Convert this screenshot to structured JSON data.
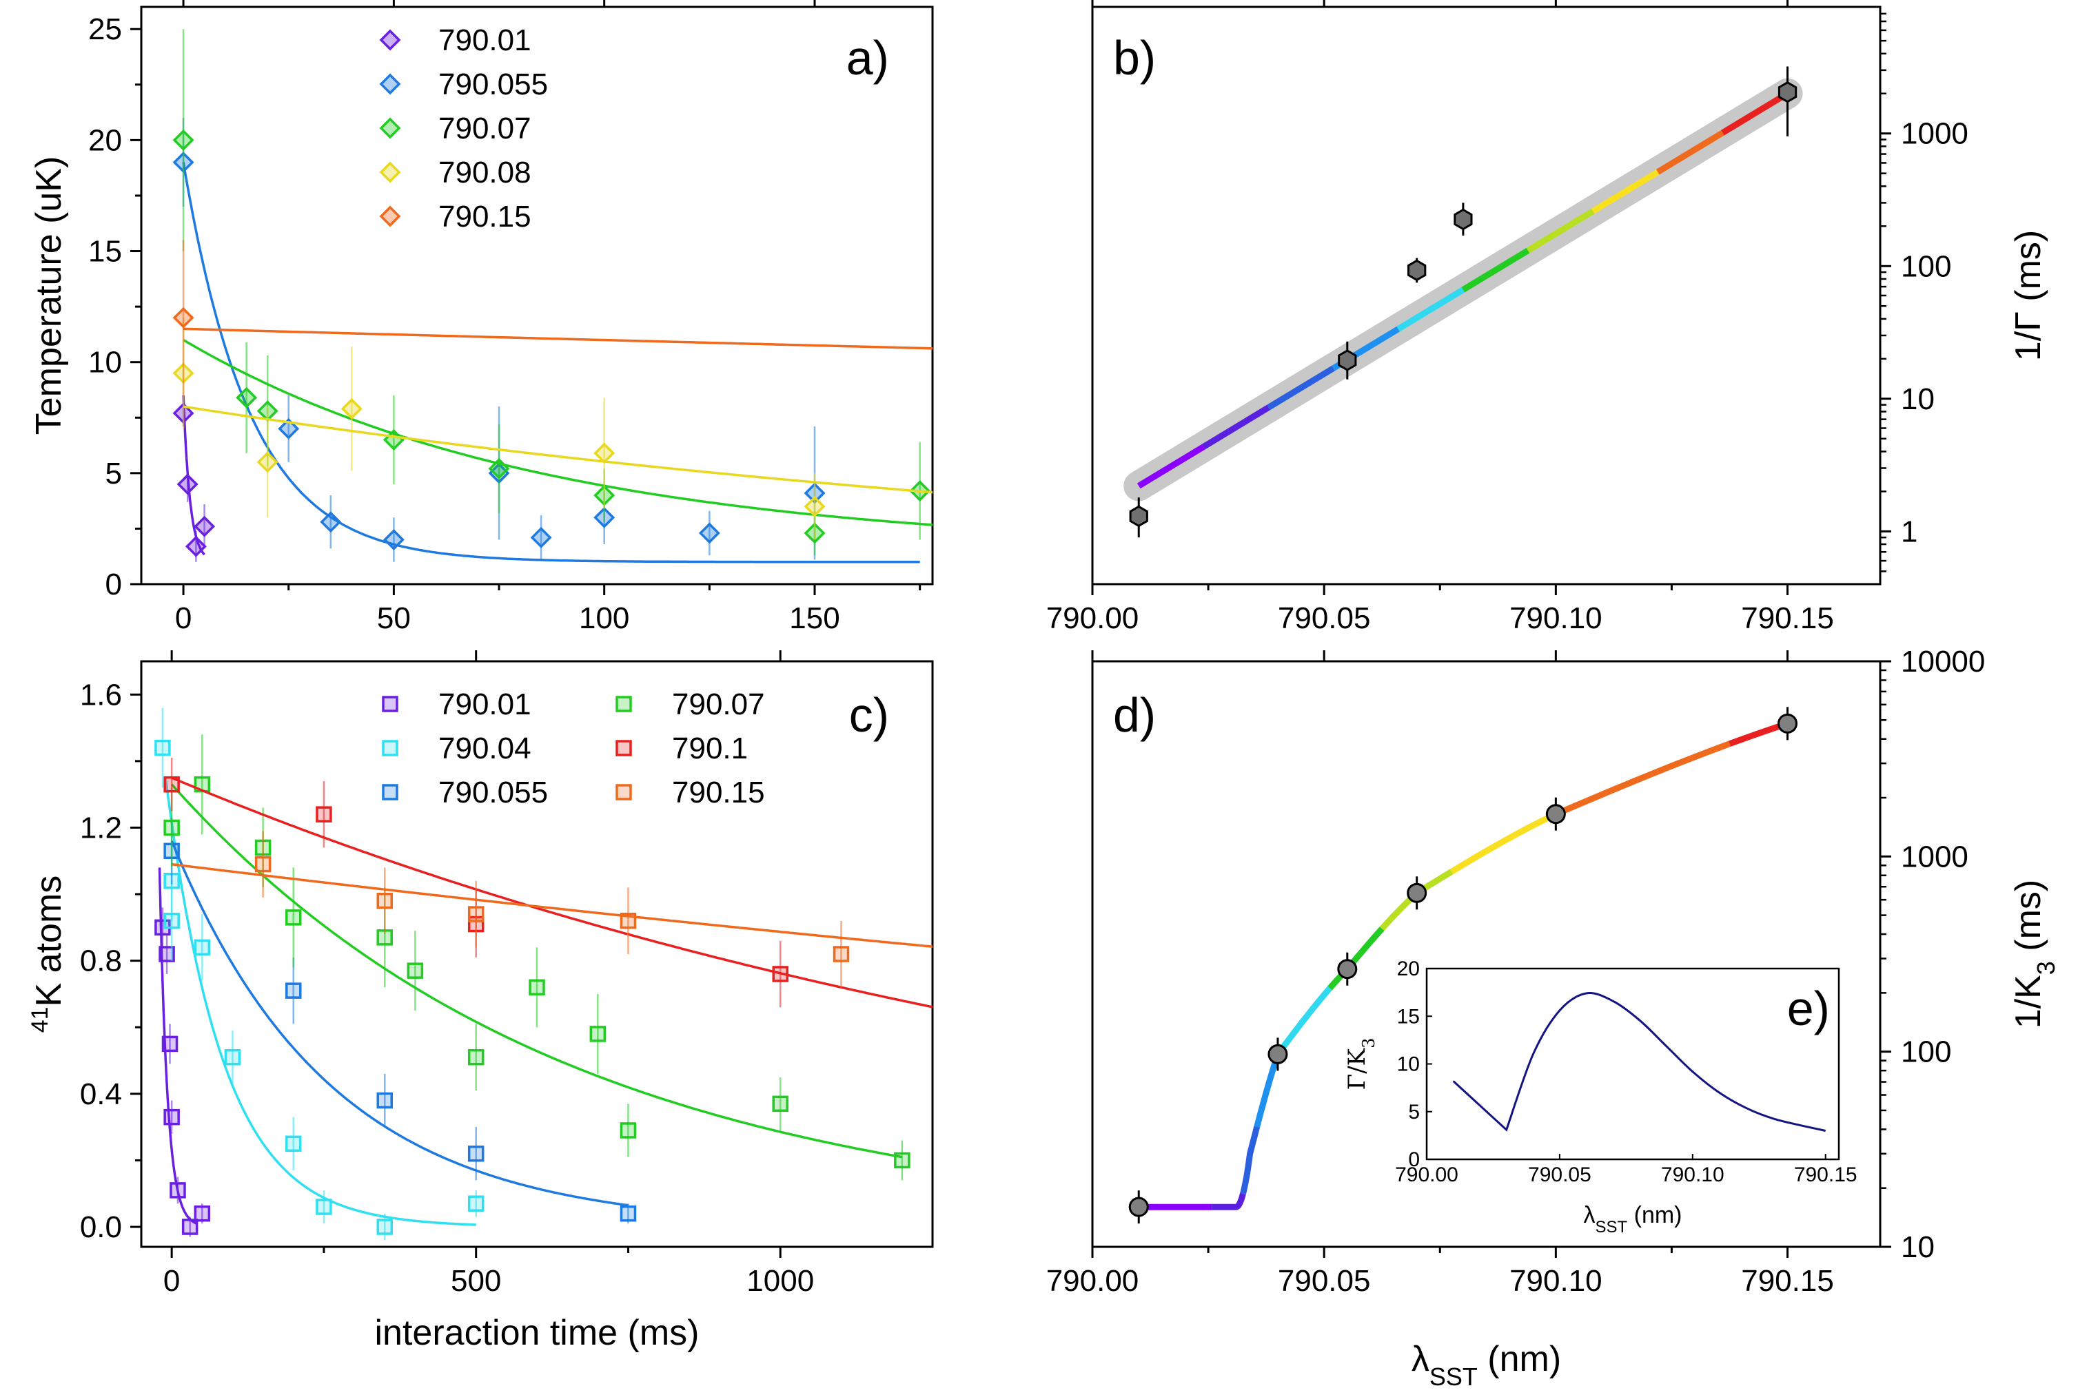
{
  "chart_data": [
    {
      "id": "a",
      "type": "scatter",
      "panel_label": "a)",
      "ylabel": "Temperature (uK)",
      "xlabel": "",
      "xlim": [
        -10,
        178
      ],
      "ylim": [
        0,
        26
      ],
      "xticks": [
        0,
        50,
        100,
        150
      ],
      "yticks": [
        0,
        5,
        10,
        15,
        20,
        25
      ],
      "marker": "diamond",
      "series": [
        {
          "name": "790.01",
          "color": "#6a20e0",
          "points": [
            [
              0,
              7.7
            ],
            [
              1,
              4.5
            ],
            [
              3,
              1.7
            ],
            [
              5,
              2.6
            ]
          ],
          "errors": [
            0.6,
            0.8,
            0.7,
            1.0
          ],
          "fit": {
            "A": 7.5,
            "tau": 1.6,
            "c": 1.0,
            "x0": 0,
            "x1": 5
          }
        },
        {
          "name": "790.055",
          "color": "#1e7ae0",
          "points": [
            [
              0,
              19.0
            ],
            [
              25,
              7.0
            ],
            [
              35,
              2.8
            ],
            [
              50,
              2.0
            ],
            [
              75,
              5.0
            ],
            [
              85,
              2.1
            ],
            [
              100,
              3.0
            ],
            [
              125,
              2.3
            ],
            [
              150,
              4.1
            ]
          ],
          "errors": [
            2.0,
            1.5,
            1.2,
            1.0,
            3.0,
            1.0,
            1.2,
            1.0,
            3.0
          ],
          "fit": {
            "A": 18.0,
            "tau": 16.0,
            "c": 1.0,
            "x0": 0,
            "x1": 175
          }
        },
        {
          "name": "790.07",
          "color": "#22cc22",
          "points": [
            [
              0,
              20.0
            ],
            [
              15,
              8.4
            ],
            [
              20,
              7.8
            ],
            [
              50,
              6.5
            ],
            [
              75,
              5.2
            ],
            [
              100,
              4.0
            ],
            [
              150,
              2.3
            ],
            [
              175,
              4.2
            ]
          ],
          "errors": [
            5.0,
            2.5,
            2.5,
            2.0,
            2.0,
            1.2,
            1.0,
            2.2
          ],
          "fit": {
            "A": 9.5,
            "tau": 85.0,
            "c": 1.5,
            "x0": 0,
            "x1": 178
          }
        },
        {
          "name": "790.08",
          "color": "#e8d820",
          "points": [
            [
              0,
              9.5
            ],
            [
              20,
              5.5
            ],
            [
              40,
              7.9
            ],
            [
              100,
              5.9
            ],
            [
              150,
              3.5
            ]
          ],
          "errors": [
            2.5,
            2.5,
            2.8,
            2.5,
            1.5
          ],
          "fit": {
            "A": 8.0,
            "tau": 270.0,
            "c": 0.0,
            "x0": 0,
            "x1": 178
          }
        },
        {
          "name": "790.15",
          "color": "#f06a1e",
          "points": [
            [
              0,
              12.0
            ]
          ],
          "errors": [
            3.5
          ],
          "fit": {
            "A": 11.5,
            "tau": 2230.0,
            "c": 0.0,
            "x0": 0,
            "x1": 178
          }
        }
      ]
    },
    {
      "id": "b",
      "type": "scatter",
      "panel_label": "b)",
      "ylabel": "1/Γ (ms)",
      "xlabel": "",
      "xlim": [
        790.0,
        790.17
      ],
      "ylim_log": [
        0.4,
        9000
      ],
      "xticks": [
        "790.00",
        "790.05",
        "790.10",
        "790.15"
      ],
      "xtick_values": [
        790.0,
        790.05,
        790.1,
        790.15
      ],
      "yticks": [
        "1",
        "10",
        "100",
        "1000"
      ],
      "ytick_values": [
        1,
        10,
        100,
        1000
      ],
      "points": [
        [
          790.01,
          1.3
        ],
        [
          790.055,
          19.5
        ],
        [
          790.07,
          93.0
        ],
        [
          790.08,
          225.0
        ],
        [
          790.15,
          2050.0
        ]
      ],
      "errors": [
        [
          0.9,
          1.8
        ],
        [
          14.0,
          27.0
        ],
        [
          75.0,
          115.0
        ],
        [
          170.0,
          300.0
        ],
        [
          950.0,
          3200.0
        ]
      ],
      "fit": {
        "x0": 790.01,
        "y0": 2.2,
        "x1": 790.15,
        "y1": 2000.0
      },
      "fit_band_color": "#c8c8c8"
    },
    {
      "id": "c",
      "type": "scatter",
      "panel_label": "c)",
      "ylabel_prefix": "41",
      "ylabel": "K atoms",
      "xlabel": "interaction time (ms)",
      "xlim": [
        -50,
        1250
      ],
      "ylim": [
        -0.06,
        1.7
      ],
      "xticks": [
        0,
        500,
        1000
      ],
      "yticks": [
        "0.0",
        "0.4",
        "0.8",
        "1.2",
        "1.6"
      ],
      "ytick_values": [
        0.0,
        0.4,
        0.8,
        1.2,
        1.6
      ],
      "marker": "square",
      "series": [
        {
          "name": "790.01",
          "color": "#6a20e0",
          "points": [
            [
              -15,
              0.9
            ],
            [
              -8,
              0.82
            ],
            [
              -3,
              0.55
            ],
            [
              0,
              0.33
            ],
            [
              10,
              0.11
            ],
            [
              30,
              0.0
            ],
            [
              50,
              0.04
            ]
          ],
          "errors": [
            0.06,
            0.06,
            0.06,
            0.05,
            0.04,
            0.03,
            0.03
          ],
          "fit": {
            "A": 1.08,
            "tau": 13.0,
            "c": 0.0,
            "x0": -20,
            "x1": 40,
            "t0": -20
          }
        },
        {
          "name": "790.04",
          "color": "#30e0f0",
          "points": [
            [
              -15,
              1.44
            ],
            [
              0,
              1.04
            ],
            [
              0,
              0.92
            ],
            [
              50,
              0.84
            ],
            [
              100,
              0.51
            ],
            [
              200,
              0.25
            ],
            [
              250,
              0.06
            ],
            [
              350,
              0.0
            ],
            [
              500,
              0.07
            ]
          ],
          "errors": [
            0.12,
            0.12,
            0.12,
            0.1,
            0.08,
            0.08,
            0.05,
            0.04,
            0.04
          ],
          "fit": {
            "A": 1.35,
            "tau": 95.0,
            "c": 0.0,
            "x0": -10,
            "x1": 500,
            "t0": -10
          }
        },
        {
          "name": "790.055",
          "color": "#1e7ae0",
          "points": [
            [
              0,
              1.13
            ],
            [
              200,
              0.71
            ],
            [
              350,
              0.38
            ],
            [
              500,
              0.22
            ],
            [
              750,
              0.04
            ]
          ],
          "errors": [
            0.1,
            0.1,
            0.08,
            0.08,
            0.03
          ],
          "fit": {
            "A": 1.16,
            "tau": 260.0,
            "c": 0.0,
            "x0": 0,
            "x1": 750,
            "t0": 0
          }
        },
        {
          "name": "790.07",
          "color": "#22cc22",
          "points": [
            [
              0,
              1.2
            ],
            [
              50,
              1.33
            ],
            [
              150,
              1.14
            ],
            [
              200,
              0.93
            ],
            [
              350,
              0.87
            ],
            [
              400,
              0.77
            ],
            [
              500,
              0.51
            ],
            [
              600,
              0.72
            ],
            [
              700,
              0.58
            ],
            [
              750,
              0.29
            ],
            [
              1000,
              0.37
            ],
            [
              1200,
              0.2
            ]
          ],
          "errors": [
            0.12,
            0.15,
            0.12,
            0.15,
            0.15,
            0.12,
            0.1,
            0.12,
            0.12,
            0.08,
            0.08,
            0.06
          ],
          "fit": {
            "A": 1.33,
            "tau": 650.0,
            "c": 0.0,
            "x0": 0,
            "x1": 1200,
            "t0": 0
          }
        },
        {
          "name": "790.1",
          "color": "#e82020",
          "points": [
            [
              0,
              1.33
            ],
            [
              250,
              1.24
            ],
            [
              500,
              0.91
            ],
            [
              1000,
              0.76
            ]
          ],
          "errors": [
            0.08,
            0.1,
            0.1,
            0.1
          ],
          "fit": {
            "A": 1.35,
            "tau": 1750.0,
            "c": 0.0,
            "x0": 0,
            "x1": 1250,
            "t0": 0
          }
        },
        {
          "name": "790.15",
          "color": "#f06a1e",
          "points": [
            [
              150,
              1.09
            ],
            [
              350,
              0.98
            ],
            [
              500,
              0.94
            ],
            [
              750,
              0.92
            ],
            [
              1100,
              0.82
            ]
          ],
          "errors": [
            0.1,
            0.1,
            0.1,
            0.1,
            0.1
          ],
          "fit": {
            "A": 1.09,
            "tau": 4850.0,
            "c": 0.0,
            "x0": 0,
            "x1": 1250,
            "t0": 0
          }
        }
      ]
    },
    {
      "id": "d",
      "type": "scatter",
      "panel_label": "d)",
      "ylabel": "1/K",
      "ylabel_sub": "3",
      "ylabel_unit": " (ms)",
      "xlabel": "λ",
      "xlabel_sub": "SST",
      "xlabel_unit": " (nm)",
      "xlim": [
        790.0,
        790.17
      ],
      "ylim_log": [
        10,
        10000
      ],
      "xticks": [
        "790.00",
        "790.05",
        "790.10",
        "790.15"
      ],
      "xtick_values": [
        790.0,
        790.05,
        790.1,
        790.15
      ],
      "yticks": [
        "10",
        "100",
        "1000",
        "10000"
      ],
      "ytick_values": [
        10,
        100,
        1000,
        10000
      ],
      "points": [
        [
          790.01,
          16.0
        ],
        [
          790.04,
          97.0
        ],
        [
          790.055,
          265.0
        ],
        [
          790.07,
          650.0
        ],
        [
          790.1,
          1650.0
        ],
        [
          790.15,
          4800.0
        ]
      ],
      "curve": [
        [
          790.01,
          16.0
        ],
        [
          790.031,
          16.0
        ],
        [
          790.034,
          30.0
        ],
        [
          790.04,
          97.0
        ],
        [
          790.055,
          265.0
        ],
        [
          790.07,
          650.0
        ],
        [
          790.1,
          1650.0
        ],
        [
          790.15,
          4800.0
        ]
      ]
    },
    {
      "id": "e",
      "type": "line",
      "panel_label": "e)",
      "ylabel": "Γ/K",
      "ylabel_sub": "3",
      "xlabel": "λ",
      "xlabel_sub": "SST",
      "xlabel_unit": " (nm)",
      "xlim": [
        790.0,
        790.155
      ],
      "ylim": [
        0,
        20
      ],
      "xticks": [
        "790.00",
        "790.05",
        "790.10",
        "790.15"
      ],
      "xtick_values": [
        790.0,
        790.05,
        790.1,
        790.15
      ],
      "yticks": [
        "0",
        "5",
        "10",
        "15",
        "20"
      ],
      "ytick_values": [
        0,
        5,
        10,
        15,
        20
      ],
      "color": "#141482",
      "curve": [
        [
          790.01,
          8.2
        ],
        [
          790.03,
          3.1
        ],
        [
          790.04,
          11.0
        ],
        [
          790.05,
          15.6
        ],
        [
          790.06,
          17.4
        ],
        [
          790.07,
          16.6
        ],
        [
          790.08,
          14.6
        ],
        [
          790.09,
          11.9
        ],
        [
          790.1,
          9.2
        ],
        [
          790.11,
          7.0
        ],
        [
          790.12,
          5.4
        ],
        [
          790.13,
          4.3
        ],
        [
          790.14,
          3.6
        ],
        [
          790.15,
          3.0
        ]
      ]
    }
  ],
  "rainbow": [
    "#8a00ff",
    "#5a20e0",
    "#2a60e0",
    "#1e90f0",
    "#30d8f0",
    "#22cc22",
    "#b8e020",
    "#f8e020",
    "#f06a1e",
    "#e82020"
  ]
}
